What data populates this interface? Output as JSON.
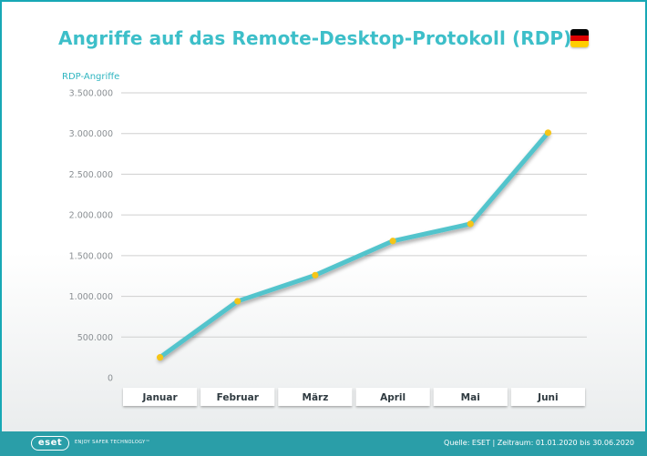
{
  "header": {
    "title": "Angriffe auf das Remote-Desktop-Protokoll (RDP)",
    "flag_icon": "germany-flag-icon",
    "flag_colors": [
      "#000000",
      "#dd0000",
      "#ffce00"
    ]
  },
  "footer": {
    "logo": "eset",
    "tagline": "ENJOY SAFER TECHNOLOGY™",
    "source": "Quelle: ESET  |  Zeitraum: 01.01.2020 bis 30.06.2020"
  },
  "colors": {
    "title": "#3dbfc9",
    "line": "#52c4cc",
    "marker": "#f5c518",
    "grid": "#cfcfcf",
    "footer": "#2a9ea8"
  },
  "chart_data": {
    "type": "line",
    "title": "Angriffe auf das Remote-Desktop-Protokoll (RDP)",
    "ylabel": "RDP-Angriffe",
    "xlabel": "",
    "categories": [
      "Januar",
      "Februar",
      "März",
      "April",
      "Mai",
      "Juni"
    ],
    "values": [
      250000,
      940000,
      1260000,
      1680000,
      1890000,
      3010000
    ],
    "ylim": [
      0,
      3500000
    ],
    "yticks": [
      0,
      500000,
      1000000,
      1500000,
      2000000,
      2500000,
      3000000,
      3500000
    ],
    "ytick_labels": [
      "0",
      "500.000",
      "1.000.000",
      "1.500.000",
      "2.000.000",
      "2.500.000",
      "3.000.000",
      "3.500.000"
    ],
    "grid": true,
    "legend": "none"
  }
}
